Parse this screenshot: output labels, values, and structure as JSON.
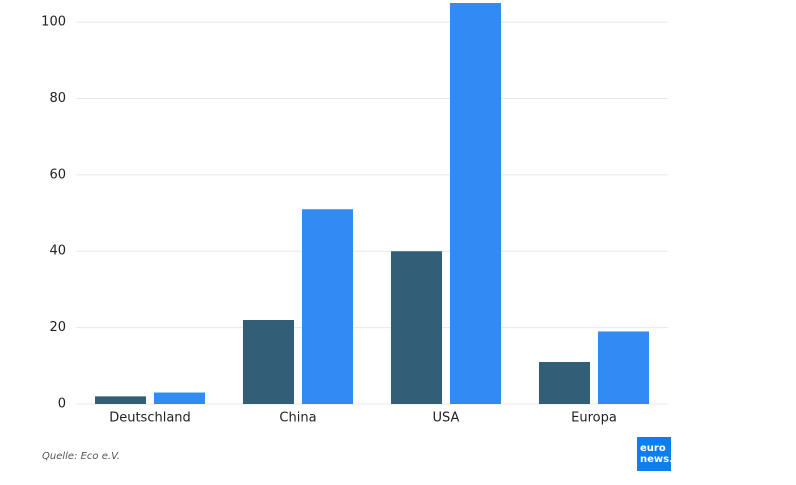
{
  "chart_data": {
    "type": "bar",
    "categories": [
      "Deutschland",
      "China",
      "USA",
      "Europa"
    ],
    "series": [
      {
        "color": "#335e78",
        "values": [
          2,
          22,
          40,
          11
        ]
      },
      {
        "color": "#328bf3",
        "values": [
          3,
          51,
          105,
          19
        ]
      }
    ],
    "ylim": [
      0,
      105
    ],
    "yticks": [
      0,
      20,
      40,
      60,
      80,
      100
    ],
    "grid": true
  },
  "source": "Quelle: Eco e.V.",
  "logo": {
    "line1": "euro",
    "line2": "news."
  }
}
